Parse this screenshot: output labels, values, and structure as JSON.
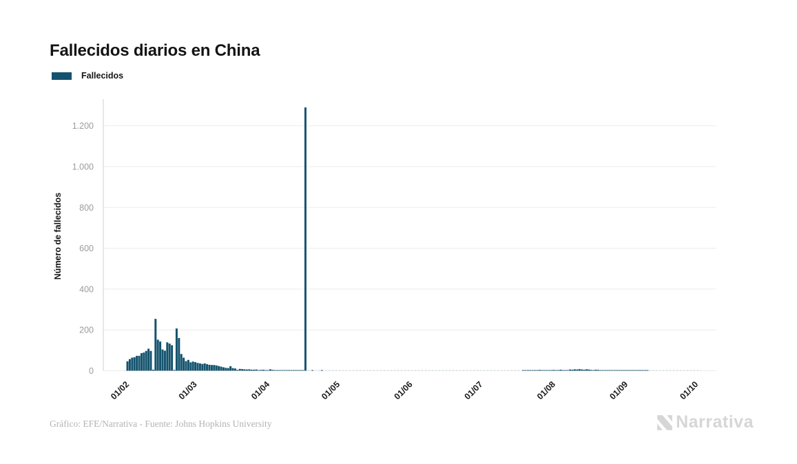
{
  "header": {
    "title": "Fallecidos diarios en China"
  },
  "legend": {
    "label": "Fallecidos",
    "swatch_color": "#14536E"
  },
  "footer": {
    "credit": "Gráfico: EFE/Narrativa - Fuente: Johns Hopkins University"
  },
  "branding": {
    "logo_text": "Narrativa",
    "logo_mark": "narrativa-n-icon",
    "logo_color": "#d6d6d6"
  },
  "colors": {
    "bar": "#14536E",
    "grid": "#ebebeb",
    "axis_line": "#cfcfcf",
    "zero_baseline": "#c6d4dc",
    "y_tick_text": "#9b9b9b",
    "x_tick_text": "#1c1c1c",
    "background": "#ffffff"
  },
  "chart_data": {
    "type": "bar",
    "title": "Fallecidos diarios en China",
    "series": [
      {
        "name": "Fallecidos",
        "color": "#14536E"
      }
    ],
    "xlabel": "",
    "ylabel": "Número de fallecidos",
    "legend_position": "top-left",
    "grid": true,
    "ylim": [
      0,
      1350
    ],
    "y_tick_values": [
      0,
      200,
      400,
      600,
      800,
      1000,
      1200
    ],
    "y_tick_labels": [
      "0",
      "200",
      "400",
      "600",
      "800",
      "1.000",
      "1.200"
    ],
    "x_tick_labels": [
      "01/02",
      "01/03",
      "01/04",
      "01/05",
      "01/06",
      "01/07",
      "01/08",
      "01/09",
      "01/10"
    ],
    "x_tick_day_indices": [
      0,
      29,
      60,
      90,
      121,
      151,
      182,
      213,
      243
    ],
    "x_start_label": "01/02",
    "x_end_label": "01/10",
    "peak_annotation": {
      "day_index": 76,
      "value": 1290
    },
    "daily_values": [
      46,
      57,
      64,
      66,
      73,
      73,
      86,
      89,
      97,
      108,
      97,
      5,
      254,
      152,
      143,
      104,
      98,
      139,
      133,
      125,
      4,
      207,
      160,
      82,
      64,
      47,
      53,
      41,
      45,
      42,
      38,
      36,
      33,
      36,
      32,
      29,
      28,
      28,
      26,
      23,
      20,
      17,
      14,
      13,
      22,
      13,
      11,
      4,
      9,
      8,
      7,
      6,
      7,
      5,
      5,
      6,
      3,
      4,
      5,
      3,
      1,
      7,
      4,
      3,
      2,
      1,
      2,
      2,
      1,
      2,
      1,
      1,
      3,
      1,
      1,
      2,
      1290,
      0,
      0,
      1,
      0,
      0,
      0,
      1,
      0,
      0,
      0,
      0,
      0,
      0,
      0,
      0,
      0,
      0,
      0,
      0,
      0,
      0,
      0,
      0,
      0,
      0,
      0,
      0,
      0,
      0,
      0,
      0,
      0,
      0,
      0,
      0,
      0,
      0,
      0,
      0,
      0,
      0,
      0,
      0,
      0,
      0,
      0,
      0,
      0,
      0,
      0,
      0,
      0,
      0,
      0,
      0,
      0,
      0,
      0,
      0,
      0,
      0,
      0,
      0,
      0,
      0,
      0,
      0,
      0,
      0,
      0,
      0,
      0,
      0,
      0,
      0,
      0,
      0,
      0,
      0,
      0,
      0,
      0,
      0,
      0,
      0,
      0,
      0,
      0,
      0,
      0,
      0,
      0,
      1,
      2,
      1,
      2,
      2,
      3,
      2,
      4,
      3,
      2,
      3,
      2,
      2,
      4,
      3,
      2,
      5,
      3,
      3,
      2,
      6,
      5,
      7,
      6,
      8,
      6,
      5,
      7,
      6,
      4,
      3,
      5,
      4,
      2,
      3,
      2,
      1,
      2,
      3,
      2,
      1,
      2,
      1,
      2,
      2,
      1,
      2,
      1,
      3,
      2,
      1,
      1,
      2,
      1,
      0,
      0,
      0,
      0,
      0,
      0,
      0,
      0,
      0,
      0,
      0,
      0,
      0,
      0,
      0,
      0,
      0,
      0,
      0,
      0,
      0
    ]
  }
}
